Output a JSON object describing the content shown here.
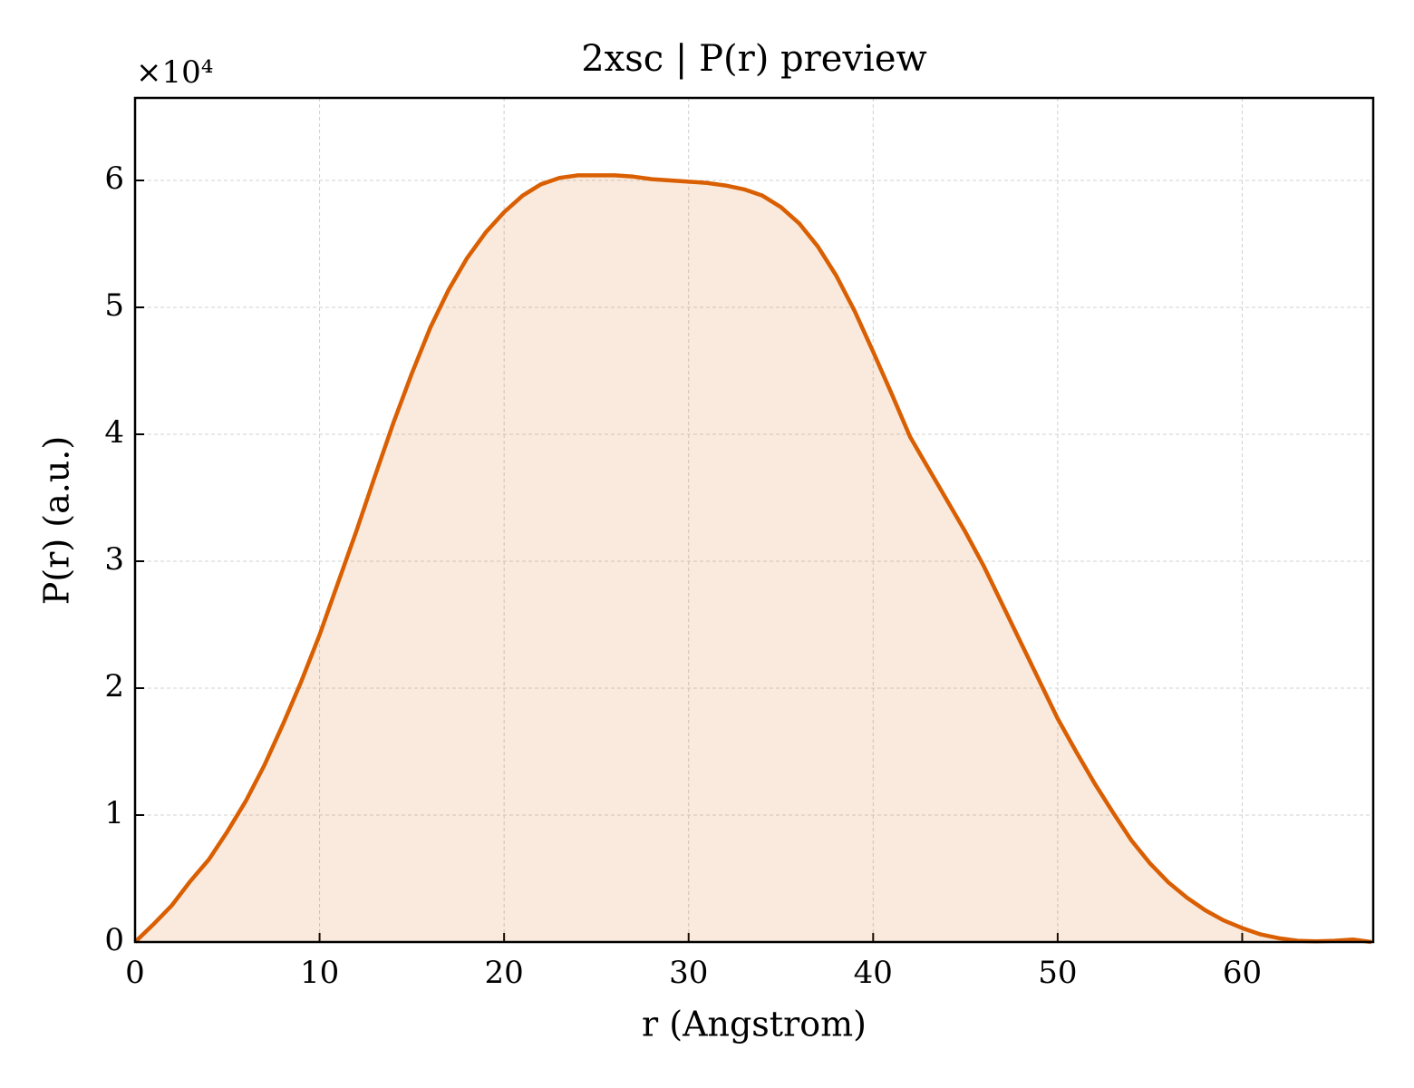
{
  "chart_data": {
    "type": "line",
    "title": "2xsc | P(r) preview",
    "x_label": "r (Angstrom)",
    "y_label": "P(r) (a.u.)",
    "y_offset_label": "×10⁴",
    "xlim": [
      0,
      67.1
    ],
    "xticks": [
      0,
      10,
      20,
      30,
      40,
      50,
      60
    ],
    "ylim": [
      0,
      6.65
    ],
    "yticks": [
      0,
      1,
      2,
      3,
      4,
      5,
      6
    ],
    "grid": true,
    "fill": true,
    "series": [
      {
        "name": "P(r)",
        "color": "#d95f02",
        "x": [
          0,
          1,
          2,
          3,
          4,
          5,
          6,
          7,
          8,
          9,
          10,
          11,
          12,
          13,
          14,
          15,
          16,
          17,
          18,
          19,
          20,
          21,
          22,
          23,
          24,
          25,
          26,
          27,
          28,
          29,
          30,
          31,
          32,
          33,
          34,
          35,
          36,
          37,
          38,
          39,
          40,
          41,
          42,
          43,
          44,
          45,
          46,
          47,
          48,
          49,
          50,
          51,
          52,
          53,
          54,
          55,
          56,
          57,
          58,
          59,
          60,
          61,
          62,
          63,
          64,
          65,
          66,
          67
        ],
        "values": [
          0,
          0.14,
          0.29,
          0.48,
          0.65,
          0.87,
          1.11,
          1.39,
          1.71,
          2.05,
          2.42,
          2.83,
          3.24,
          3.67,
          4.09,
          4.48,
          4.84,
          5.14,
          5.39,
          5.59,
          5.75,
          5.88,
          5.97,
          6.02,
          6.04,
          6.04,
          6.04,
          6.03,
          6.01,
          6.0,
          5.99,
          5.98,
          5.96,
          5.93,
          5.88,
          5.79,
          5.66,
          5.48,
          5.25,
          4.97,
          4.65,
          4.32,
          3.98,
          3.73,
          3.48,
          3.23,
          2.96,
          2.66,
          2.36,
          2.06,
          1.76,
          1.5,
          1.25,
          1.02,
          0.8,
          0.62,
          0.47,
          0.35,
          0.25,
          0.17,
          0.11,
          0.06,
          0.03,
          0.01,
          0.005,
          0.01,
          0.02,
          0
        ]
      }
    ]
  }
}
